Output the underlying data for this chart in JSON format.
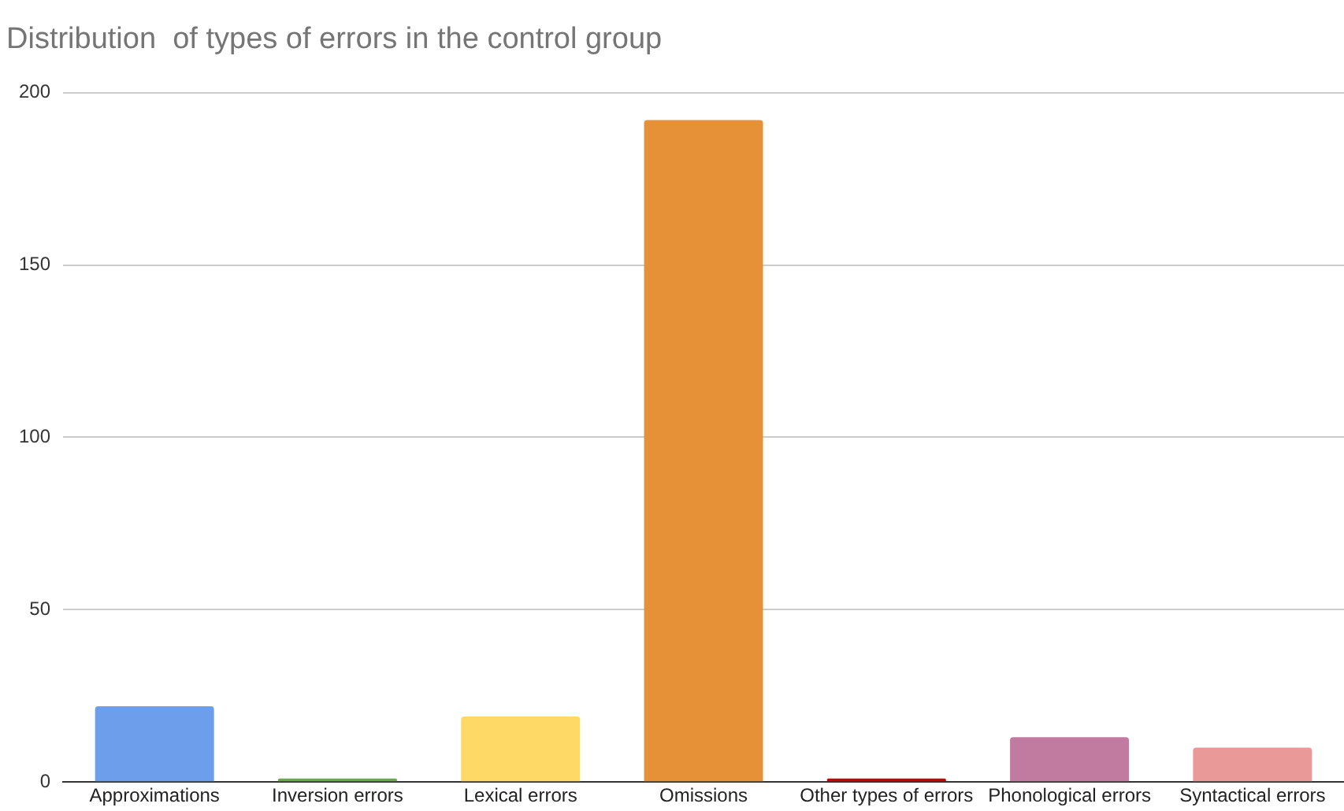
{
  "chart_data": {
    "type": "bar",
    "title": "Distribution  of types of errors in the control group",
    "categories": [
      "Approximations",
      "Inversion errors",
      "Lexical errors",
      "Omissions",
      "Other types of errors",
      "Phonological errors",
      "Syntactical errors"
    ],
    "values": [
      22,
      1,
      19,
      192,
      1,
      13,
      10
    ],
    "colors": [
      "#6d9eeb",
      "#6aa84f",
      "#ffd966",
      "#e69138",
      "#cc0000",
      "#c27ba0",
      "#ea9999"
    ],
    "ylim": [
      0,
      200
    ],
    "yticks": [
      0,
      50,
      100,
      150,
      200
    ],
    "grid": "y",
    "legend": false
  }
}
